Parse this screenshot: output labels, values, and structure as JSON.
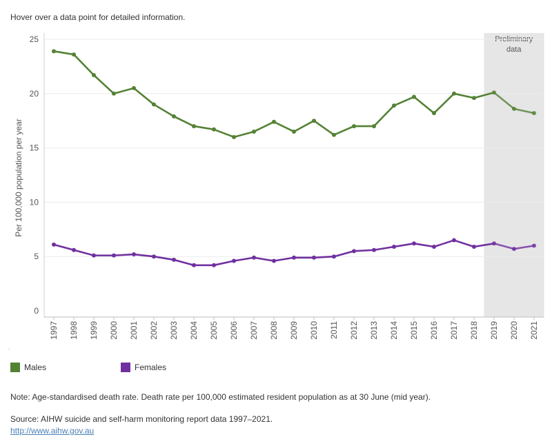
{
  "instruction": "Hover over a data point for detailed information.",
  "colors": {
    "males": "#548235",
    "females": "#7030a0",
    "preliminary_shade": "#e6e6e6",
    "preliminary_text": "#4a6c8f",
    "grid": "#ececec"
  },
  "chart_data": {
    "type": "line",
    "title": "",
    "xlabel": "",
    "ylabel": "Per 100,000 population per year",
    "ylim": [
      0,
      25
    ],
    "yticks": [
      "0",
      "5",
      "10",
      "15",
      "20",
      "25"
    ],
    "x": [
      "1997",
      "1998",
      "1999",
      "2000",
      "2001",
      "2002",
      "2003",
      "2004",
      "2005",
      "2006",
      "2007",
      "2008",
      "2009",
      "2010",
      "2011",
      "2012",
      "2013",
      "2014",
      "2015",
      "2016",
      "2017",
      "2018",
      "2019",
      "2020",
      "2021"
    ],
    "series": [
      {
        "name": "Males",
        "values": [
          23.9,
          23.6,
          21.7,
          20.0,
          20.5,
          19.0,
          17.9,
          17.0,
          16.7,
          16.0,
          16.5,
          17.4,
          16.5,
          17.5,
          16.2,
          17.0,
          17.0,
          18.9,
          19.7,
          18.2,
          20.0,
          19.6,
          20.1,
          18.6,
          18.2
        ]
      },
      {
        "name": "Females",
        "values": [
          6.1,
          5.6,
          5.1,
          5.1,
          5.2,
          5.0,
          4.7,
          4.2,
          4.2,
          4.6,
          4.9,
          4.6,
          4.9,
          4.9,
          5.0,
          5.5,
          5.6,
          5.9,
          6.2,
          5.9,
          6.5,
          5.9,
          6.2,
          5.7,
          6.0
        ]
      }
    ],
    "preliminary": {
      "from": "2019",
      "label_line1": "Preliminary",
      "label_line2": "data"
    },
    "legend": {
      "placement": "bottom-left",
      "entries": [
        "Males",
        "Females"
      ]
    }
  },
  "note": "Note: Age-standardised death rate. Death rate per 100,000 estimated resident population as at 30 June (mid year).",
  "source": "Source: AIHW suicide and self-harm monitoring report data 1997–2021.",
  "link": "http://www.aihw.gov.au"
}
